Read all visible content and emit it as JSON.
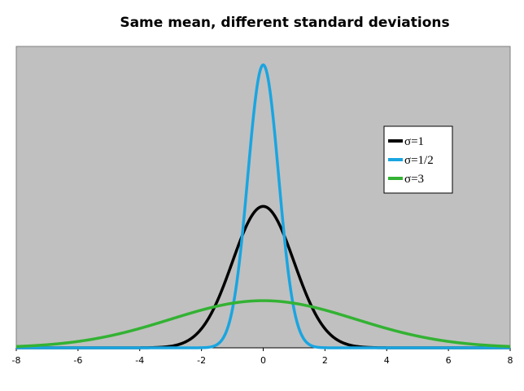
{
  "chart_data": {
    "type": "line",
    "title": "Same mean, different standard deviations",
    "xlabel": "",
    "ylabel": "",
    "xlim": [
      -8,
      8
    ],
    "ylim": [
      0,
      0.85
    ],
    "x_ticks": [
      "-8",
      "-6",
      "-4",
      "-2",
      "0",
      "2",
      "4",
      "6",
      "8"
    ],
    "grid": false,
    "legend_position": "right",
    "plot_background": "#c0c0c0",
    "series": [
      {
        "name": "σ=1",
        "mean": 0,
        "sd": 1,
        "color": "#000000"
      },
      {
        "name": "σ=1/2",
        "mean": 0,
        "sd": 0.5,
        "color": "#1aa5e0"
      },
      {
        "name": "σ=3",
        "mean": 0,
        "sd": 3,
        "color": "#33b233"
      }
    ]
  }
}
